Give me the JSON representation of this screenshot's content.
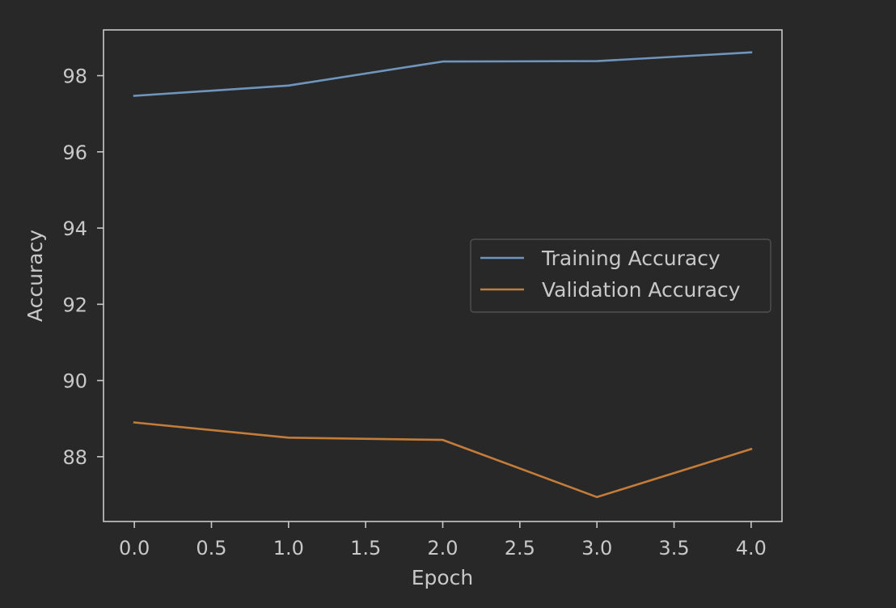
{
  "chart_data": {
    "type": "line",
    "title": "",
    "xlabel": "Epoch",
    "ylabel": "Accuracy",
    "xlim": [
      -0.2,
      4.2
    ],
    "ylim": [
      86.3,
      99.2
    ],
    "xticks": [
      0.0,
      0.5,
      1.0,
      1.5,
      2.0,
      2.5,
      3.0,
      3.5,
      4.0
    ],
    "xtick_labels": [
      "0.0",
      "0.5",
      "1.0",
      "1.5",
      "2.0",
      "2.5",
      "3.0",
      "3.5",
      "4.0"
    ],
    "yticks": [
      88,
      90,
      92,
      94,
      96,
      98
    ],
    "ytick_labels": [
      "88",
      "90",
      "92",
      "94",
      "96",
      "98"
    ],
    "grid": false,
    "legend_position": "center-right",
    "x": [
      0,
      1,
      2,
      3,
      4
    ],
    "series": [
      {
        "name": "Training Accuracy",
        "color": "#6f95bd",
        "values": [
          97.47,
          97.74,
          98.37,
          98.38,
          98.61
        ]
      },
      {
        "name": "Validation Accuracy",
        "color": "#c47c3a",
        "values": [
          88.9,
          88.5,
          88.44,
          86.94,
          88.2
        ]
      }
    ]
  }
}
